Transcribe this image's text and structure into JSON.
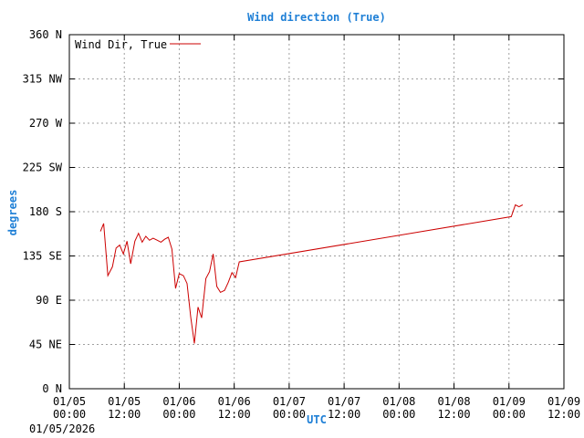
{
  "chart_data": {
    "type": "line",
    "title": "Wind direction (True)",
    "xlabel": "UTC",
    "ylabel": "degrees",
    "date_note": "01/05/2026",
    "grid": true,
    "legend_position": "top-left",
    "ylim": [
      0,
      360
    ],
    "xlim_hours": [
      0,
      108
    ],
    "y_ticks": [
      {
        "value": 0,
        "label": "0 N"
      },
      {
        "value": 45,
        "label": "45 NE"
      },
      {
        "value": 90,
        "label": "90 E"
      },
      {
        "value": 135,
        "label": "135 SE"
      },
      {
        "value": 180,
        "label": "180 S"
      },
      {
        "value": 225,
        "label": "225 SW"
      },
      {
        "value": 270,
        "label": "270 W"
      },
      {
        "value": 315,
        "label": "315 NW"
      },
      {
        "value": 360,
        "label": "360 N"
      }
    ],
    "x_ticks": [
      {
        "hour": 0,
        "line1": "01/05",
        "line2": "00:00"
      },
      {
        "hour": 12,
        "line1": "01/05",
        "line2": "12:00"
      },
      {
        "hour": 24,
        "line1": "01/06",
        "line2": "00:00"
      },
      {
        "hour": 36,
        "line1": "01/06",
        "line2": "12:00"
      },
      {
        "hour": 48,
        "line1": "01/07",
        "line2": "00:00"
      },
      {
        "hour": 60,
        "line1": "01/07",
        "line2": "12:00"
      },
      {
        "hour": 72,
        "line1": "01/08",
        "line2": "00:00"
      },
      {
        "hour": 84,
        "line1": "01/08",
        "line2": "12:00"
      },
      {
        "hour": 96,
        "line1": "01/09",
        "line2": "00:00"
      },
      {
        "hour": 108,
        "line1": "01/09",
        "line2": "12:00"
      }
    ],
    "series": [
      {
        "name": "Wind Dir, True",
        "color": "#cc0000",
        "points": [
          [
            6.8,
            160
          ],
          [
            7.5,
            168
          ],
          [
            8.4,
            115
          ],
          [
            9.4,
            124
          ],
          [
            10.2,
            143
          ],
          [
            11.0,
            146
          ],
          [
            11.8,
            137
          ],
          [
            12.6,
            150
          ],
          [
            13.4,
            127
          ],
          [
            14.3,
            150
          ],
          [
            15.1,
            158
          ],
          [
            15.9,
            149
          ],
          [
            16.7,
            155
          ],
          [
            17.5,
            151
          ],
          [
            18.3,
            153
          ],
          [
            19.2,
            151
          ],
          [
            20.0,
            149
          ],
          [
            20.8,
            152
          ],
          [
            21.6,
            154
          ],
          [
            22.4,
            142
          ],
          [
            23.2,
            102
          ],
          [
            24.0,
            117
          ],
          [
            24.9,
            115
          ],
          [
            25.7,
            107
          ],
          [
            26.5,
            73
          ],
          [
            27.3,
            46
          ],
          [
            28.1,
            83
          ],
          [
            28.9,
            72
          ],
          [
            29.8,
            112
          ],
          [
            30.6,
            119
          ],
          [
            31.4,
            137
          ],
          [
            32.2,
            104
          ],
          [
            33.0,
            98
          ],
          [
            33.9,
            100
          ],
          [
            34.7,
            108
          ],
          [
            35.5,
            118
          ],
          [
            36.3,
            113
          ],
          [
            37.1,
            129
          ],
          [
            96.5,
            175
          ],
          [
            97.4,
            187
          ],
          [
            98.2,
            185
          ],
          [
            99.0,
            187
          ]
        ]
      }
    ]
  }
}
